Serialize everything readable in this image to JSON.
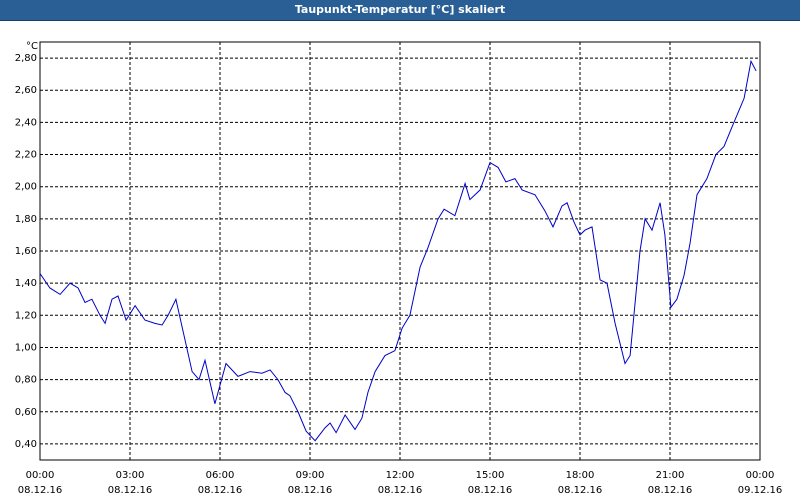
{
  "chart_data": {
    "type": "line",
    "title": "Taupunkt-Temperatur [°C] skaliert",
    "y_unit": "°C",
    "x": [
      0,
      0.33,
      0.67,
      1.0,
      1.27,
      1.5,
      1.73,
      2.0,
      2.17,
      2.4,
      2.6,
      2.87,
      3.17,
      3.5,
      3.83,
      4.07,
      4.27,
      4.53,
      5.07,
      5.3,
      5.5,
      5.83,
      6.2,
      6.6,
      7.0,
      7.4,
      7.67,
      7.93,
      8.17,
      8.33,
      8.6,
      8.87,
      9.17,
      9.5,
      9.67,
      9.87,
      10.17,
      10.5,
      10.73,
      10.93,
      11.17,
      11.5,
      11.83,
      12.07,
      12.33,
      12.67,
      12.93,
      13.27,
      13.47,
      13.83,
      14.17,
      14.33,
      14.67,
      15.0,
      15.27,
      15.53,
      15.83,
      16.07,
      16.5,
      16.83,
      17.1,
      17.4,
      17.57,
      17.8,
      18.0,
      18.17,
      18.4,
      18.67,
      18.9,
      19.17,
      19.5,
      19.67,
      20.0,
      20.17,
      20.4,
      20.67,
      20.83,
      21.03,
      21.23,
      21.47,
      21.67,
      21.9,
      22.23,
      22.53,
      22.8,
      23.13,
      23.47,
      23.7,
      23.87
    ],
    "series": [
      {
        "name": "Taupunkt",
        "color": "#0000c8",
        "values": [
          1.46,
          1.37,
          1.33,
          1.4,
          1.37,
          1.28,
          1.3,
          1.2,
          1.15,
          1.3,
          1.32,
          1.17,
          1.26,
          1.17,
          1.15,
          1.14,
          1.2,
          1.3,
          0.85,
          0.8,
          0.92,
          0.65,
          0.9,
          0.82,
          0.85,
          0.84,
          0.86,
          0.8,
          0.72,
          0.7,
          0.6,
          0.48,
          0.42,
          0.5,
          0.53,
          0.47,
          0.58,
          0.49,
          0.56,
          0.72,
          0.85,
          0.95,
          0.98,
          1.12,
          1.2,
          1.5,
          1.62,
          1.8,
          1.86,
          1.82,
          2.02,
          1.92,
          1.98,
          2.15,
          2.12,
          2.03,
          2.05,
          1.98,
          1.95,
          1.85,
          1.75,
          1.88,
          1.9,
          1.78,
          1.7,
          1.73,
          1.75,
          1.42,
          1.4,
          1.15,
          0.9,
          0.95,
          1.6,
          1.8,
          1.73,
          1.9,
          1.7,
          1.25,
          1.3,
          1.45,
          1.65,
          1.95,
          2.05,
          2.2,
          2.25,
          2.4,
          2.55,
          2.78,
          2.72
        ]
      }
    ],
    "xlim": [
      0,
      24
    ],
    "xticks": [
      {
        "value": 0,
        "label": "00:00"
      },
      {
        "value": 3,
        "label": "03:00"
      },
      {
        "value": 6,
        "label": "06:00"
      },
      {
        "value": 9,
        "label": "09:00"
      },
      {
        "value": 12,
        "label": "12:00"
      },
      {
        "value": 15,
        "label": "15:00"
      },
      {
        "value": 18,
        "label": "18:00"
      },
      {
        "value": 21,
        "label": "21:00"
      },
      {
        "value": 24,
        "label": "00:00"
      }
    ],
    "xtick_dates": [
      "08.12.16",
      "08.12.16",
      "08.12.16",
      "08.12.16",
      "08.12.16",
      "08.12.16",
      "08.12.16",
      "08.12.16",
      "09.12.16"
    ],
    "ylim": [
      0.3,
      2.9
    ],
    "yticks": [
      {
        "value": 0.4,
        "label": "0,40"
      },
      {
        "value": 0.6,
        "label": "0,60"
      },
      {
        "value": 0.8,
        "label": "0,80"
      },
      {
        "value": 1.0,
        "label": "1,00"
      },
      {
        "value": 1.2,
        "label": "1,20"
      },
      {
        "value": 1.4,
        "label": "1,40"
      },
      {
        "value": 1.6,
        "label": "1,60"
      },
      {
        "value": 1.8,
        "label": "1,80"
      },
      {
        "value": 2.0,
        "label": "2,00"
      },
      {
        "value": 2.2,
        "label": "2,20"
      },
      {
        "value": 2.4,
        "label": "2,40"
      },
      {
        "value": 2.6,
        "label": "2,60"
      },
      {
        "value": 2.8,
        "label": "2,80"
      }
    ],
    "grid": true
  }
}
